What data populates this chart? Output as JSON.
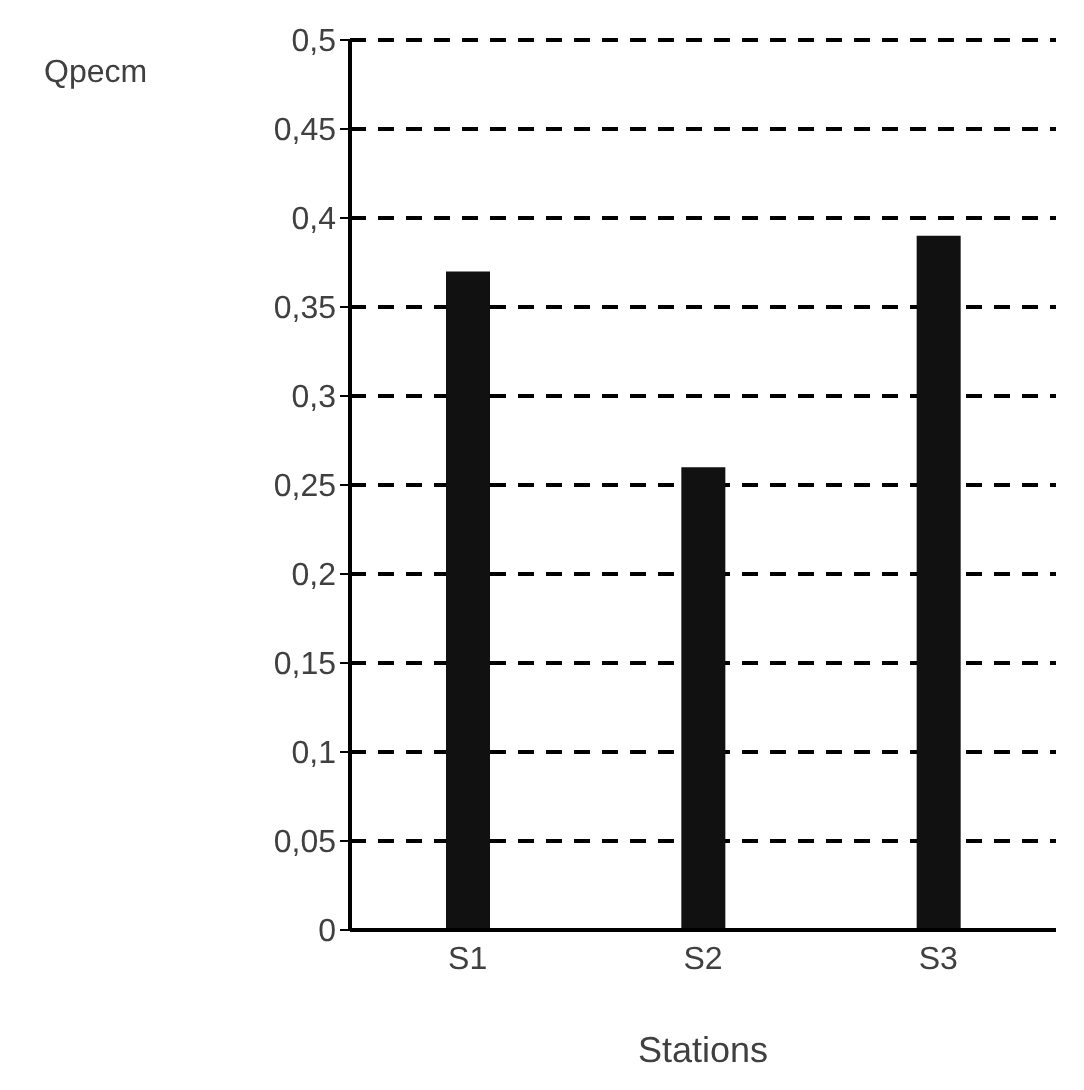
{
  "chart_data": {
    "type": "bar",
    "xlabel": "Stations",
    "ylabel": "Qpecm",
    "categories": [
      "S1",
      "S2",
      "S3"
    ],
    "values": [
      0.37,
      0.26,
      0.39
    ],
    "color": "#111111",
    "ylim": [
      0,
      0.5
    ],
    "yticks": [
      0,
      {
        "value": 0.05,
        "label": "0,05"
      },
      {
        "value": 0.1,
        "label": "0,1"
      },
      {
        "value": 0.15,
        "label": "0,15"
      },
      {
        "value": 0.2,
        "label": "0,2"
      },
      {
        "value": 0.25,
        "label": "0,25"
      },
      {
        "value": 0.3,
        "label": "0,3"
      },
      {
        "value": 0.35,
        "label": "0,35"
      },
      {
        "value": 0.4,
        "label": "0,4"
      },
      {
        "value": 0.45,
        "label": "0,45"
      },
      {
        "value": 0.5,
        "label": "0,5"
      }
    ],
    "grid": "y"
  }
}
